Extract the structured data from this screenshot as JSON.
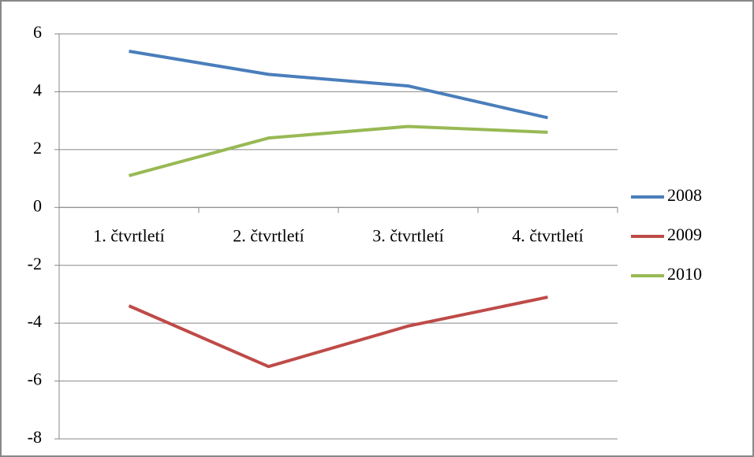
{
  "chart_data": {
    "type": "line",
    "categories": [
      "1. čtvrtletí",
      "2. čtvrtletí",
      "3. čtvrtletí",
      "4. čtvrtletí"
    ],
    "series": [
      {
        "name": "2008",
        "color": "#4a7ebb",
        "values": [
          5.4,
          4.6,
          4.2,
          3.1
        ]
      },
      {
        "name": "2009",
        "color": "#be4b48",
        "values": [
          -3.4,
          -5.5,
          -4.1,
          -3.1
        ]
      },
      {
        "name": "2010",
        "color": "#98b954",
        "values": [
          1.1,
          2.4,
          2.8,
          2.6
        ]
      }
    ],
    "ylim": [
      -8,
      6
    ],
    "yticks": [
      -8,
      -6,
      -4,
      -2,
      0,
      2,
      4,
      6
    ],
    "grid": true,
    "legend": "right"
  }
}
